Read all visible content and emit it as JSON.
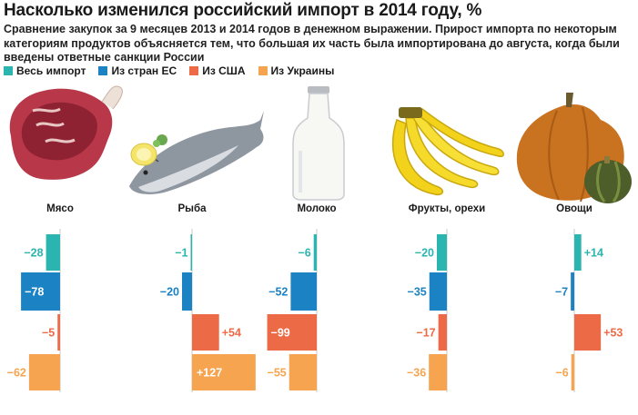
{
  "header": {
    "title": "Насколько изменился российский импорт в 2014 году, %",
    "subtitle": "Сравнение закупок за 9 месяцев 2013 и 2014 годов в денежном выражении. Прирост импорта по некоторым категориям продуктов объясняется тем, что большая их часть была импортирована до августа, когда были введены ответные санкции России"
  },
  "colors": {
    "total": "#2bb5b0",
    "eu": "#1b82c4",
    "usa": "#ec6a45",
    "ukraine": "#f6a44f"
  },
  "chart_data": {
    "type": "bar",
    "orientation": "horizontal",
    "categories": [
      "Мясо",
      "Рыба",
      "Молоко",
      "Фрукты, орехи",
      "Овощи"
    ],
    "series": [
      {
        "name": "Весь импорт",
        "values": [
          -28,
          -1,
          -6,
          -20,
          14
        ]
      },
      {
        "name": "Из стран ЕС",
        "values": [
          -78,
          -20,
          -52,
          -35,
          -7
        ]
      },
      {
        "name": "Из США",
        "values": [
          -5,
          54,
          -99,
          -17,
          53
        ]
      },
      {
        "name": "Из Украины",
        "values": [
          -62,
          127,
          -55,
          -36,
          -6
        ]
      }
    ],
    "value_labels": [
      [
        "−28",
        "−78",
        "−5",
        "−62"
      ],
      [
        "−1",
        "−20",
        "+54",
        "+127"
      ],
      [
        "−6",
        "−52",
        "−99",
        "−55"
      ],
      [
        "−20",
        "−35",
        "−17",
        "−36"
      ],
      [
        "+14",
        "−7",
        "+53",
        "−6"
      ]
    ],
    "legend_position": "top-left",
    "grid": false
  }
}
